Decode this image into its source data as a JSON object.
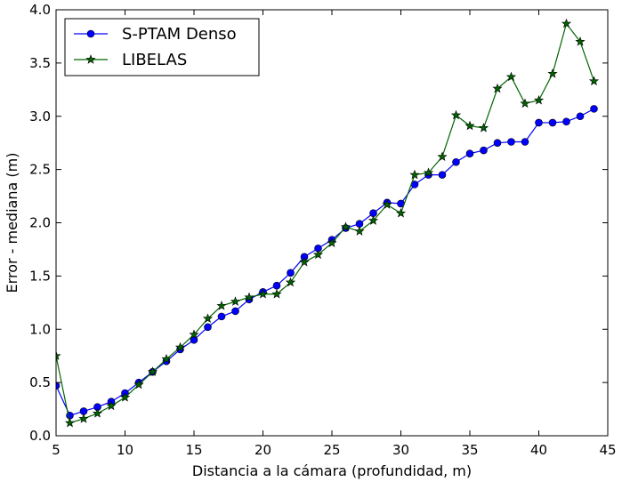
{
  "chart_data": {
    "type": "line",
    "title": "",
    "xlabel": "Distancia a la cámara (profundidad, m)",
    "ylabel": "Error - mediana (m)",
    "xlim": [
      5,
      45
    ],
    "ylim": [
      0.0,
      4.0
    ],
    "xticks": [
      "5",
      "10",
      "15",
      "20",
      "25",
      "30",
      "35",
      "40",
      "45"
    ],
    "yticks": [
      "0.0",
      "0.5",
      "1.0",
      "1.5",
      "2.0",
      "2.5",
      "3.0",
      "3.5",
      "4.0"
    ],
    "grid": false,
    "legend_position": "top-left",
    "x": [
      5,
      6,
      7,
      8,
      9,
      10,
      11,
      12,
      13,
      14,
      15,
      16,
      17,
      18,
      19,
      20,
      21,
      22,
      23,
      24,
      25,
      26,
      27,
      28,
      29,
      30,
      31,
      32,
      33,
      34,
      35,
      36,
      37,
      38,
      39,
      40,
      41,
      42,
      43,
      44
    ],
    "series": [
      {
        "name": "S-PTAM Denso",
        "color": "#0000ff",
        "marker": "circle",
        "values": [
          0.47,
          0.19,
          0.23,
          0.27,
          0.32,
          0.4,
          0.5,
          0.6,
          0.7,
          0.81,
          0.9,
          1.02,
          1.12,
          1.17,
          1.28,
          1.35,
          1.41,
          1.53,
          1.68,
          1.76,
          1.84,
          1.95,
          1.99,
          2.09,
          2.19,
          2.18,
          2.36,
          2.45,
          2.45,
          2.57,
          2.65,
          2.68,
          2.75,
          2.76,
          2.76,
          2.94,
          2.94,
          2.95,
          3.0,
          3.07
        ]
      },
      {
        "name": "LIBELAS",
        "color": "#006400",
        "marker": "star",
        "values": [
          0.75,
          0.12,
          0.16,
          0.21,
          0.28,
          0.36,
          0.48,
          0.6,
          0.72,
          0.83,
          0.95,
          1.1,
          1.22,
          1.26,
          1.3,
          1.33,
          1.33,
          1.44,
          1.63,
          1.7,
          1.81,
          1.96,
          1.92,
          2.02,
          2.17,
          2.09,
          2.45,
          2.47,
          2.62,
          3.01,
          2.91,
          2.89,
          3.26,
          3.37,
          3.12,
          3.15,
          3.4,
          3.87,
          3.7,
          3.33
        ]
      }
    ]
  }
}
